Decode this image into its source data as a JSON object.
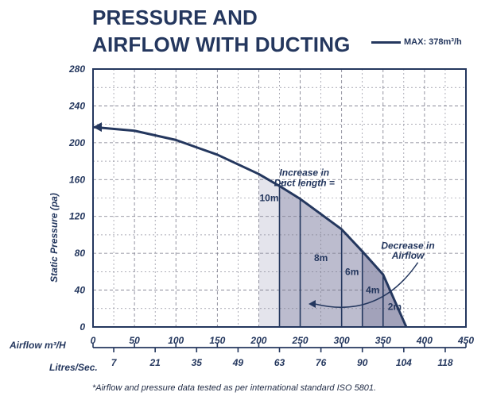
{
  "title_line1": "PRESSURE AND",
  "title_line2": "AIRFLOW WITH DUCTING",
  "legend_label": "MAX: 378m³/h",
  "footnote": "*Airflow and pressure data tested as per international standard ISO 5801.",
  "colors": {
    "navy": "#24375e",
    "shade_light": "#e4e4ec",
    "shade_mid": "#bcbcce",
    "shade_dark": "#a2a2ba",
    "grid": "#7a7a8a"
  },
  "chart_data": {
    "type": "line",
    "title": "PRESSURE AND AIRFLOW WITH DUCTING",
    "xlabel": "Airflow m³/H",
    "xlabel2": "Litres/Sec.",
    "ylabel": "Static Pressure (pa)",
    "xlim": [
      0,
      450
    ],
    "ylim": [
      0,
      280
    ],
    "x_ticks": [
      0,
      50,
      100,
      150,
      200,
      250,
      300,
      350,
      400,
      450
    ],
    "y_ticks": [
      0,
      40,
      80,
      120,
      160,
      200,
      240,
      280
    ],
    "x2_ticks": [
      {
        "at": 25,
        "label": "7"
      },
      {
        "at": 75,
        "label": "21"
      },
      {
        "at": 125,
        "label": "35"
      },
      {
        "at": 175,
        "label": "49"
      },
      {
        "at": 225,
        "label": "63"
      },
      {
        "at": 275,
        "label": "76"
      },
      {
        "at": 325,
        "label": "90"
      },
      {
        "at": 375,
        "label": "104"
      },
      {
        "at": 425,
        "label": "118"
      }
    ],
    "grid": true,
    "series": [
      {
        "name": "MAX: 378m³/h",
        "x": [
          0,
          50,
          100,
          150,
          200,
          225,
          250,
          300,
          325,
          350,
          378
        ],
        "y": [
          217,
          213,
          203,
          187,
          166,
          153,
          139,
          106,
          82,
          57,
          0
        ]
      }
    ],
    "shaded_start": 200,
    "duct_lines": [
      {
        "x": 225,
        "label": "10m"
      },
      {
        "x": 250,
        "label": "8m"
      },
      {
        "x": 300,
        "label": "6m"
      },
      {
        "x": 325,
        "label": "4m"
      },
      {
        "x": 350,
        "label": "2m"
      }
    ],
    "annotations": [
      {
        "text": "Increase in",
        "x": 255,
        "y": 164
      },
      {
        "text": "Duct length =",
        "x": 255,
        "y": 153
      },
      {
        "text": "Decrease in",
        "x": 380,
        "y": 85
      },
      {
        "text": "Airflow",
        "x": 380,
        "y": 74
      }
    ]
  }
}
